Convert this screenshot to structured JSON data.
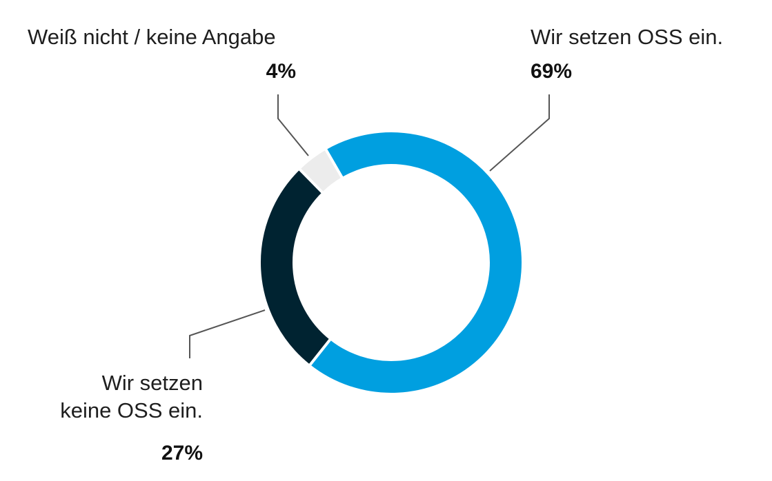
{
  "chart_data": {
    "type": "pie",
    "series": [
      {
        "name": "Wir setzen OSS ein.",
        "label_lines": [
          "Wir setzen OSS ein."
        ],
        "value": 69,
        "value_label": "69%",
        "color": "#009fe0"
      },
      {
        "name": "Wir setzen keine OSS ein.",
        "label_lines": [
          "Wir setzen",
          "keine OSS ein."
        ],
        "value": 27,
        "value_label": "27%",
        "color": "#002331"
      },
      {
        "name": "Weiß nicht / keine Angabe",
        "label_lines": [
          "Weiß nicht / keine Angabe"
        ],
        "value": 4,
        "value_label": "4%",
        "color": "#ececec"
      }
    ]
  }
}
